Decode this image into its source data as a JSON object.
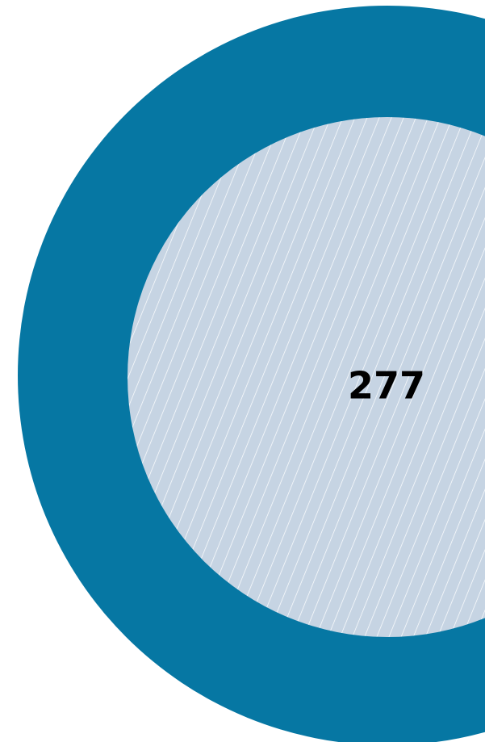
{
  "label": "277"
}
